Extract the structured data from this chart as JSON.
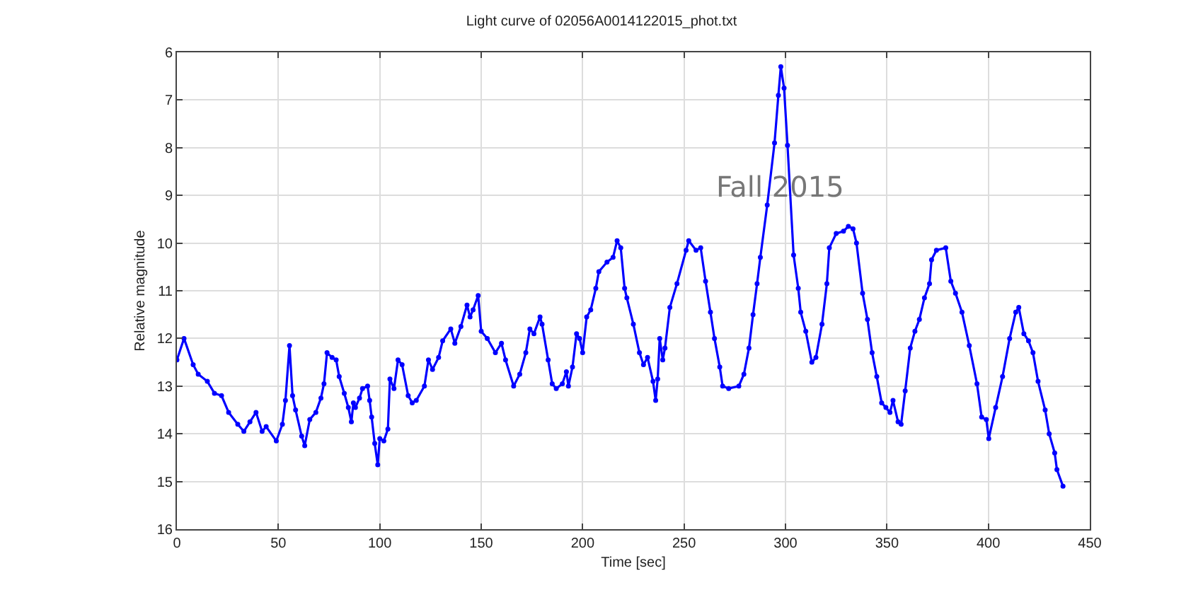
{
  "chart_data": {
    "type": "line",
    "title": "Light curve of 02056A0014122015_phot.txt",
    "xlabel": "Time [sec]",
    "ylabel": "Relative magnitude",
    "annotations": [
      "Fall 2015"
    ],
    "xlim": [
      0,
      450
    ],
    "xticks": [
      0,
      50,
      100,
      150,
      200,
      250,
      300,
      350,
      400,
      450
    ],
    "ylim": [
      16,
      6
    ],
    "yticks": [
      6,
      7,
      8,
      9,
      10,
      11,
      12,
      13,
      14,
      15,
      16
    ],
    "grid": true,
    "marker": "circle",
    "line_style": "solid",
    "series": [
      {
        "color": "#0000ff",
        "x": [
          0,
          3.5,
          8,
          10.5,
          15,
          18.5,
          22,
          25.5,
          30,
          33,
          36,
          39,
          42,
          44,
          49,
          52,
          53.5,
          55.5,
          57,
          58.5,
          61.5,
          63,
          65.5,
          68.5,
          71,
          72.5,
          74,
          76.5,
          78.5,
          80,
          82.5,
          84.5,
          86,
          87,
          88,
          90,
          91.5,
          94,
          95,
          96,
          97.5,
          99,
          100,
          102,
          104,
          105,
          107,
          109,
          111,
          114,
          116,
          118,
          122,
          124,
          126,
          129,
          131,
          135,
          137,
          140,
          143,
          144.5,
          146,
          148.5,
          150,
          153,
          157,
          160,
          162,
          166,
          169,
          172,
          174,
          176,
          179,
          180,
          183,
          185,
          187,
          190,
          192,
          193,
          195,
          197,
          198.5,
          200,
          202,
          204,
          206.5,
          208,
          212,
          215,
          217,
          218.8,
          220.7,
          221.8,
          225,
          228,
          230,
          232,
          234.7,
          236,
          237,
          238,
          239.5,
          240.6,
          243,
          246.5,
          251,
          252.3,
          255.9,
          258.2,
          260.6,
          263,
          265,
          267.6,
          269,
          272,
          277,
          279.5,
          282,
          284,
          286,
          287.6,
          291,
          294.6,
          296.5,
          297.7,
          299.3,
          301,
          304,
          306.3,
          307.5,
          310,
          313,
          315,
          318,
          320.4,
          321.6,
          325,
          328.6,
          331,
          333.3,
          335,
          338,
          340.4,
          342.7,
          345,
          347.4,
          349.5,
          351.5,
          353,
          355.5,
          357,
          359,
          361.5,
          363.8,
          366,
          368.5,
          371,
          372,
          374.4,
          379,
          381.5,
          383.8,
          387,
          390.6,
          394.4,
          396.7,
          399,
          400.2,
          403.6,
          407,
          410.5,
          413.5,
          415,
          417.5,
          419.8,
          422,
          424.5,
          428,
          430,
          432.7,
          433.8,
          436.8
        ],
        "values": [
          12.45,
          12.0,
          12.55,
          12.75,
          12.9,
          13.15,
          13.2,
          13.55,
          13.8,
          13.95,
          13.75,
          13.55,
          13.95,
          13.85,
          14.15,
          13.8,
          13.3,
          12.15,
          13.2,
          13.5,
          14.05,
          14.25,
          13.7,
          13.55,
          13.25,
          12.95,
          12.3,
          12.4,
          12.45,
          12.8,
          13.15,
          13.45,
          13.75,
          13.35,
          13.45,
          13.25,
          13.05,
          13.0,
          13.3,
          13.65,
          14.2,
          14.65,
          14.1,
          14.15,
          13.9,
          12.85,
          13.05,
          12.45,
          12.55,
          13.2,
          13.35,
          13.3,
          13.0,
          12.45,
          12.65,
          12.4,
          12.05,
          11.8,
          12.1,
          11.75,
          11.3,
          11.55,
          11.4,
          11.1,
          11.85,
          12.0,
          12.3,
          12.1,
          12.45,
          13.0,
          12.75,
          12.3,
          11.8,
          11.9,
          11.55,
          11.7,
          12.45,
          12.95,
          13.05,
          12.95,
          12.7,
          13.0,
          12.6,
          11.9,
          12.0,
          12.3,
          11.55,
          11.4,
          10.95,
          10.6,
          10.4,
          10.3,
          9.95,
          10.1,
          10.95,
          11.15,
          11.7,
          12.3,
          12.55,
          12.4,
          12.9,
          13.3,
          12.85,
          12.0,
          12.45,
          12.2,
          11.35,
          10.85,
          10.15,
          9.95,
          10.15,
          10.1,
          10.8,
          11.45,
          12.0,
          12.6,
          13.0,
          13.05,
          13.0,
          12.75,
          12.2,
          11.5,
          10.85,
          10.3,
          9.2,
          7.9,
          6.9,
          6.3,
          6.75,
          7.95,
          10.25,
          10.95,
          11.45,
          11.85,
          12.5,
          12.4,
          11.7,
          10.85,
          10.1,
          9.8,
          9.75,
          9.65,
          9.7,
          10.0,
          11.05,
          11.6,
          12.3,
          12.8,
          13.35,
          13.45,
          13.55,
          13.3,
          13.75,
          13.8,
          13.1,
          12.2,
          11.85,
          11.6,
          11.15,
          10.85,
          10.35,
          10.15,
          10.1,
          10.8,
          11.05,
          11.45,
          12.15,
          12.95,
          13.65,
          13.7,
          14.1,
          13.45,
          12.8,
          12.0,
          11.45,
          11.35,
          11.9,
          12.05,
          12.3,
          12.9,
          13.5,
          14.0,
          14.4,
          14.75,
          15.1
        ]
      }
    ]
  }
}
